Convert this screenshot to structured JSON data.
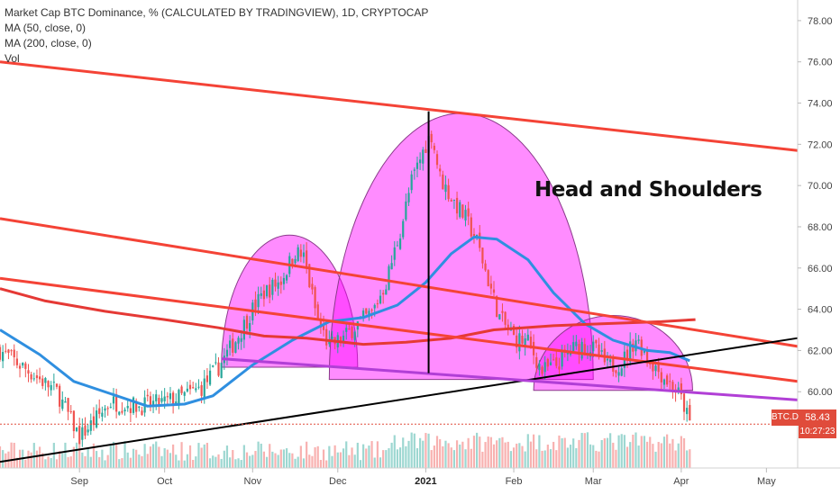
{
  "legend": {
    "title": "Market Cap BTC Dominance, % (CALCULATED BY TRADINGVIEW), 1D, CRYPTOCAP",
    "ma50": "MA (50, close, 0)",
    "ma200": "MA (200, close, 0)",
    "vol": "Vol"
  },
  "annotation": "Head and Shoulders",
  "price_badge": {
    "symbol": "BTC.D",
    "value": "58.43",
    "time": "10:27:23"
  },
  "colors": {
    "up_candle": "#26a69a",
    "down_candle": "#ef5350",
    "ma50": "#2f8fe0",
    "ma200": "#e53935",
    "channel": "#f44336",
    "pattern_fill": "#ff00ff",
    "neckline": "#b13fd6",
    "trendline": "#000000"
  },
  "chart_data": {
    "type": "candlestick",
    "title": "Market Cap BTC Dominance, % (CALCULATED BY TRADINGVIEW), 1D, CRYPTOCAP",
    "ylim": [
      56.3,
      79.0
    ],
    "ytick_labels": [
      "60.00",
      "62.00",
      "64.00",
      "66.00",
      "68.00",
      "70.00",
      "72.00",
      "74.00",
      "76.00",
      "78.00"
    ],
    "xtick_labels": [
      "Sep",
      "Oct",
      "Nov",
      "Dec",
      "2021",
      "Feb",
      "Mar",
      "Apr",
      "May"
    ],
    "xlim": [
      "2020-08-04",
      "2021-05-12"
    ],
    "close_keypoints": [
      [
        "2020-08-04",
        62.0
      ],
      [
        "2020-08-14",
        61.0
      ],
      [
        "2020-08-24",
        60.0
      ],
      [
        "2020-09-01",
        57.8
      ],
      [
        "2020-09-05",
        58.4
      ],
      [
        "2020-09-12",
        59.5
      ],
      [
        "2020-09-22",
        59.3
      ],
      [
        "2020-10-01",
        59.5
      ],
      [
        "2020-10-08",
        59.8
      ],
      [
        "2020-10-14",
        60.2
      ],
      [
        "2020-10-20",
        61.2
      ],
      [
        "2020-10-26",
        62.5
      ],
      [
        "2020-11-01",
        64.0
      ],
      [
        "2020-11-05",
        64.8
      ],
      [
        "2020-11-11",
        65.4
      ],
      [
        "2020-11-16",
        66.8
      ],
      [
        "2020-11-19",
        66.5
      ],
      [
        "2020-11-24",
        63.4
      ],
      [
        "2020-11-28",
        62.2
      ],
      [
        "2020-12-03",
        62.6
      ],
      [
        "2020-12-08",
        63.3
      ],
      [
        "2020-12-13",
        63.8
      ],
      [
        "2020-12-18",
        65.3
      ],
      [
        "2020-12-23",
        67.8
      ],
      [
        "2020-12-27",
        70.2
      ],
      [
        "2021-01-01",
        72.0
      ],
      [
        "2021-01-03",
        72.5
      ],
      [
        "2021-01-06",
        70.4
      ],
      [
        "2021-01-10",
        69.4
      ],
      [
        "2021-01-15",
        68.4
      ],
      [
        "2021-01-19",
        67.3
      ],
      [
        "2021-01-23",
        65.4
      ],
      [
        "2021-01-27",
        63.6
      ],
      [
        "2021-02-01",
        62.6
      ],
      [
        "2021-02-06",
        62.4
      ],
      [
        "2021-02-11",
        61.0
      ],
      [
        "2021-02-16",
        61.3
      ],
      [
        "2021-02-21",
        62.0
      ],
      [
        "2021-02-25",
        62.3
      ],
      [
        "2021-03-02",
        62.0
      ],
      [
        "2021-03-06",
        61.2
      ],
      [
        "2021-03-11",
        61.4
      ],
      [
        "2021-03-16",
        62.6
      ],
      [
        "2021-03-21",
        61.5
      ],
      [
        "2021-03-26",
        60.7
      ],
      [
        "2021-03-31",
        59.9
      ],
      [
        "2021-04-02",
        59.3
      ],
      [
        "2021-04-04",
        58.43
      ]
    ],
    "series": [
      {
        "name": "MA (50, close, 0)",
        "points": [
          [
            "2020-08-04",
            63.0
          ],
          [
            "2020-08-18",
            61.8
          ],
          [
            "2020-08-30",
            60.5
          ],
          [
            "2020-09-12",
            59.9
          ],
          [
            "2020-09-25",
            59.3
          ],
          [
            "2020-10-08",
            59.4
          ],
          [
            "2020-10-18",
            59.8
          ],
          [
            "2020-11-01",
            61.3
          ],
          [
            "2020-11-15",
            62.5
          ],
          [
            "2020-11-28",
            63.4
          ],
          [
            "2020-12-10",
            63.6
          ],
          [
            "2020-12-22",
            64.2
          ],
          [
            "2021-01-01",
            65.3
          ],
          [
            "2021-01-10",
            66.7
          ],
          [
            "2021-01-18",
            67.5
          ],
          [
            "2021-01-26",
            67.4
          ],
          [
            "2021-02-06",
            66.4
          ],
          [
            "2021-02-15",
            64.8
          ],
          [
            "2021-02-26",
            63.3
          ],
          [
            "2021-03-08",
            62.5
          ],
          [
            "2021-03-20",
            62.0
          ],
          [
            "2021-03-28",
            61.9
          ],
          [
            "2021-04-04",
            61.5
          ]
        ]
      },
      {
        "name": "MA (200, close, 0)",
        "points": [
          [
            "2020-08-04",
            65.0
          ],
          [
            "2020-08-20",
            64.4
          ],
          [
            "2020-09-10",
            63.9
          ],
          [
            "2020-10-01",
            63.5
          ],
          [
            "2020-10-20",
            63.1
          ],
          [
            "2020-11-05",
            62.7
          ],
          [
            "2020-11-20",
            62.6
          ],
          [
            "2020-12-10",
            62.3
          ],
          [
            "2020-12-25",
            62.4
          ],
          [
            "2021-01-10",
            62.6
          ],
          [
            "2021-01-25",
            63.0
          ],
          [
            "2021-02-15",
            63.2
          ],
          [
            "2021-03-05",
            63.3
          ],
          [
            "2021-03-25",
            63.4
          ],
          [
            "2021-04-06",
            63.5
          ]
        ]
      }
    ],
    "drawings": [
      {
        "kind": "channel-line",
        "from": [
          "2020-08-04",
          76.0
        ],
        "to": [
          "2021-05-12",
          71.7
        ]
      },
      {
        "kind": "channel-line",
        "from": [
          "2020-08-04",
          68.4
        ],
        "to": [
          "2021-05-12",
          62.2
        ]
      },
      {
        "kind": "channel-line",
        "from": [
          "2020-08-04",
          65.5
        ],
        "to": [
          "2021-05-12",
          60.5
        ]
      },
      {
        "kind": "trendline",
        "from": [
          "2020-08-04",
          56.6
        ],
        "to": [
          "2021-05-12",
          62.6
        ]
      },
      {
        "kind": "neckline",
        "from": [
          "2020-10-21",
          61.6
        ],
        "to": [
          "2021-05-12",
          59.6
        ]
      },
      {
        "kind": "head-marker",
        "from": [
          "2021-01-02",
          73.6
        ],
        "to": [
          "2021-01-02",
          60.9
        ]
      }
    ],
    "pattern_regions": [
      {
        "name": "left-shoulder",
        "from": "2020-10-21",
        "to": "2020-12-08",
        "peak": 67.6
      },
      {
        "name": "head",
        "from": "2020-11-28",
        "to": "2021-03-01",
        "peak": 73.5
      },
      {
        "name": "right-shoulder",
        "from": "2021-02-08",
        "to": "2021-04-05",
        "peak": 63.7
      }
    ],
    "grid": false,
    "legend_placement": "top-left"
  }
}
